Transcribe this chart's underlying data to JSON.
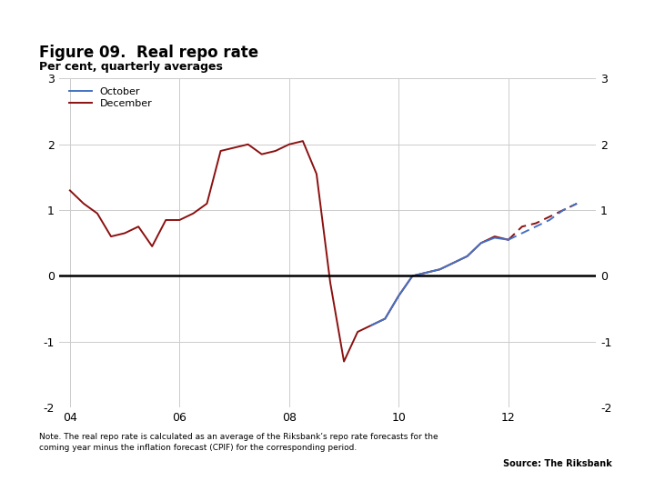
{
  "title": "Figure 09.  Real repo rate",
  "subtitle": "Per cent, quarterly averages",
  "note": "Note. The real repo rate is calculated as an average of the Riksbank’s repo rate forecasts for the\ncoming year minus the inflation forecast (CPIF) for the corresponding period.",
  "source": "Source: The Riksbank",
  "background_color": "#ffffff",
  "october_color": "#4472C4",
  "december_color": "#8B1010",
  "ylim": [
    -2,
    3
  ],
  "yticks": [
    -2,
    -1,
    0,
    1,
    2,
    3
  ],
  "xlim_min": 2003.8,
  "xlim_max": 2013.6,
  "xtick_positions": [
    2004,
    2006,
    2008,
    2010,
    2012
  ],
  "xtick_labels": [
    "04",
    "06",
    "08",
    "10",
    "12"
  ],
  "forecast_start_dec": 2012.0,
  "forecast_start_oct": 2012.0,
  "december_x": [
    2004.0,
    2004.25,
    2004.5,
    2004.75,
    2005.0,
    2005.25,
    2005.5,
    2005.75,
    2006.0,
    2006.25,
    2006.5,
    2006.75,
    2007.0,
    2007.25,
    2007.5,
    2007.75,
    2008.0,
    2008.25,
    2008.5,
    2008.75,
    2009.0,
    2009.25,
    2009.5,
    2009.75,
    2010.0,
    2010.25,
    2010.5,
    2010.75,
    2011.0,
    2011.25,
    2011.5,
    2011.75,
    2012.0,
    2012.25,
    2012.5,
    2012.75,
    2013.0,
    2013.25
  ],
  "december_y": [
    1.3,
    1.1,
    0.95,
    0.6,
    0.65,
    0.75,
    0.45,
    0.85,
    0.85,
    0.95,
    1.1,
    1.9,
    1.95,
    2.0,
    1.85,
    1.9,
    2.0,
    2.05,
    1.55,
    -0.1,
    -1.3,
    -0.85,
    -0.75,
    -0.65,
    -0.3,
    0.0,
    0.05,
    0.1,
    0.2,
    0.3,
    0.5,
    0.6,
    0.55,
    0.75,
    0.8,
    0.9,
    1.0,
    1.1
  ],
  "october_x": [
    2009.5,
    2009.75,
    2010.0,
    2010.25,
    2010.5,
    2010.75,
    2011.0,
    2011.25,
    2011.5,
    2011.75,
    2012.0,
    2012.25,
    2012.5,
    2012.75,
    2013.0,
    2013.25
  ],
  "october_y": [
    -0.75,
    -0.65,
    -0.3,
    0.0,
    0.05,
    0.1,
    0.2,
    0.3,
    0.5,
    0.58,
    0.55,
    0.65,
    0.75,
    0.85,
    1.0,
    1.1
  ],
  "grid_color": "#CCCCCC",
  "zero_line_color": "#000000",
  "header_bar_color": "#1F4E8C"
}
